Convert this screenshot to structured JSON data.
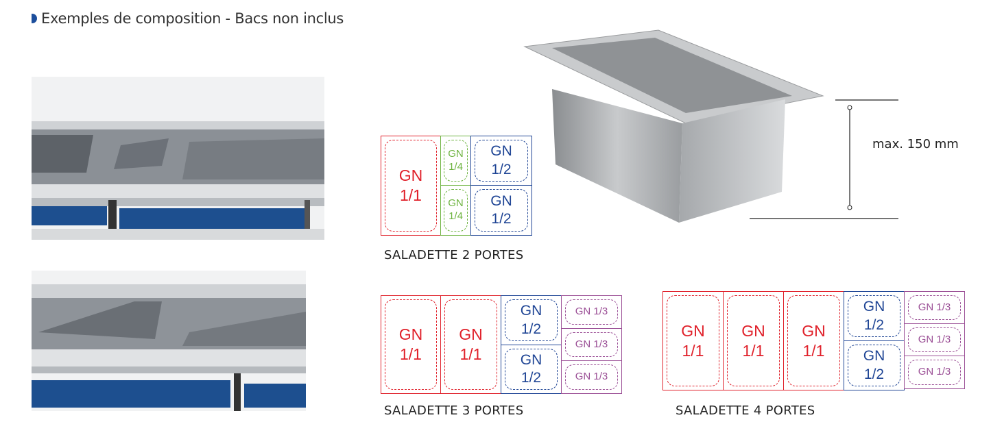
{
  "title": "Exemples de composition - Bacs non inclus",
  "colors": {
    "gn11": "#e0202a",
    "gn14": "#6db33f",
    "gn12": "#1f4595",
    "gn13": "#9b4f96",
    "bullet": "#1c4e9c"
  },
  "dimension_label": "max. 150 mm",
  "diagrams": [
    {
      "caption": "SALADETTE 2 PORTES",
      "cells": [
        "GN\n1/1",
        "GN\n1/4",
        "GN\n1/4",
        "GN\n1/2",
        "GN\n1/2"
      ]
    },
    {
      "caption": "SALADETTE 3 PORTES",
      "cells": [
        "GN\n1/1",
        "GN\n1/1",
        "GN\n1/2",
        "GN\n1/2",
        "GN 1/3",
        "GN 1/3",
        "GN 1/3"
      ]
    },
    {
      "caption": "SALADETTE 4 PORTES",
      "cells": [
        "GN\n1/1",
        "GN\n1/1",
        "GN\n1/1",
        "GN\n1/2",
        "GN\n1/2",
        "GN 1/3",
        "GN 1/3",
        "GN 1/3"
      ]
    }
  ]
}
